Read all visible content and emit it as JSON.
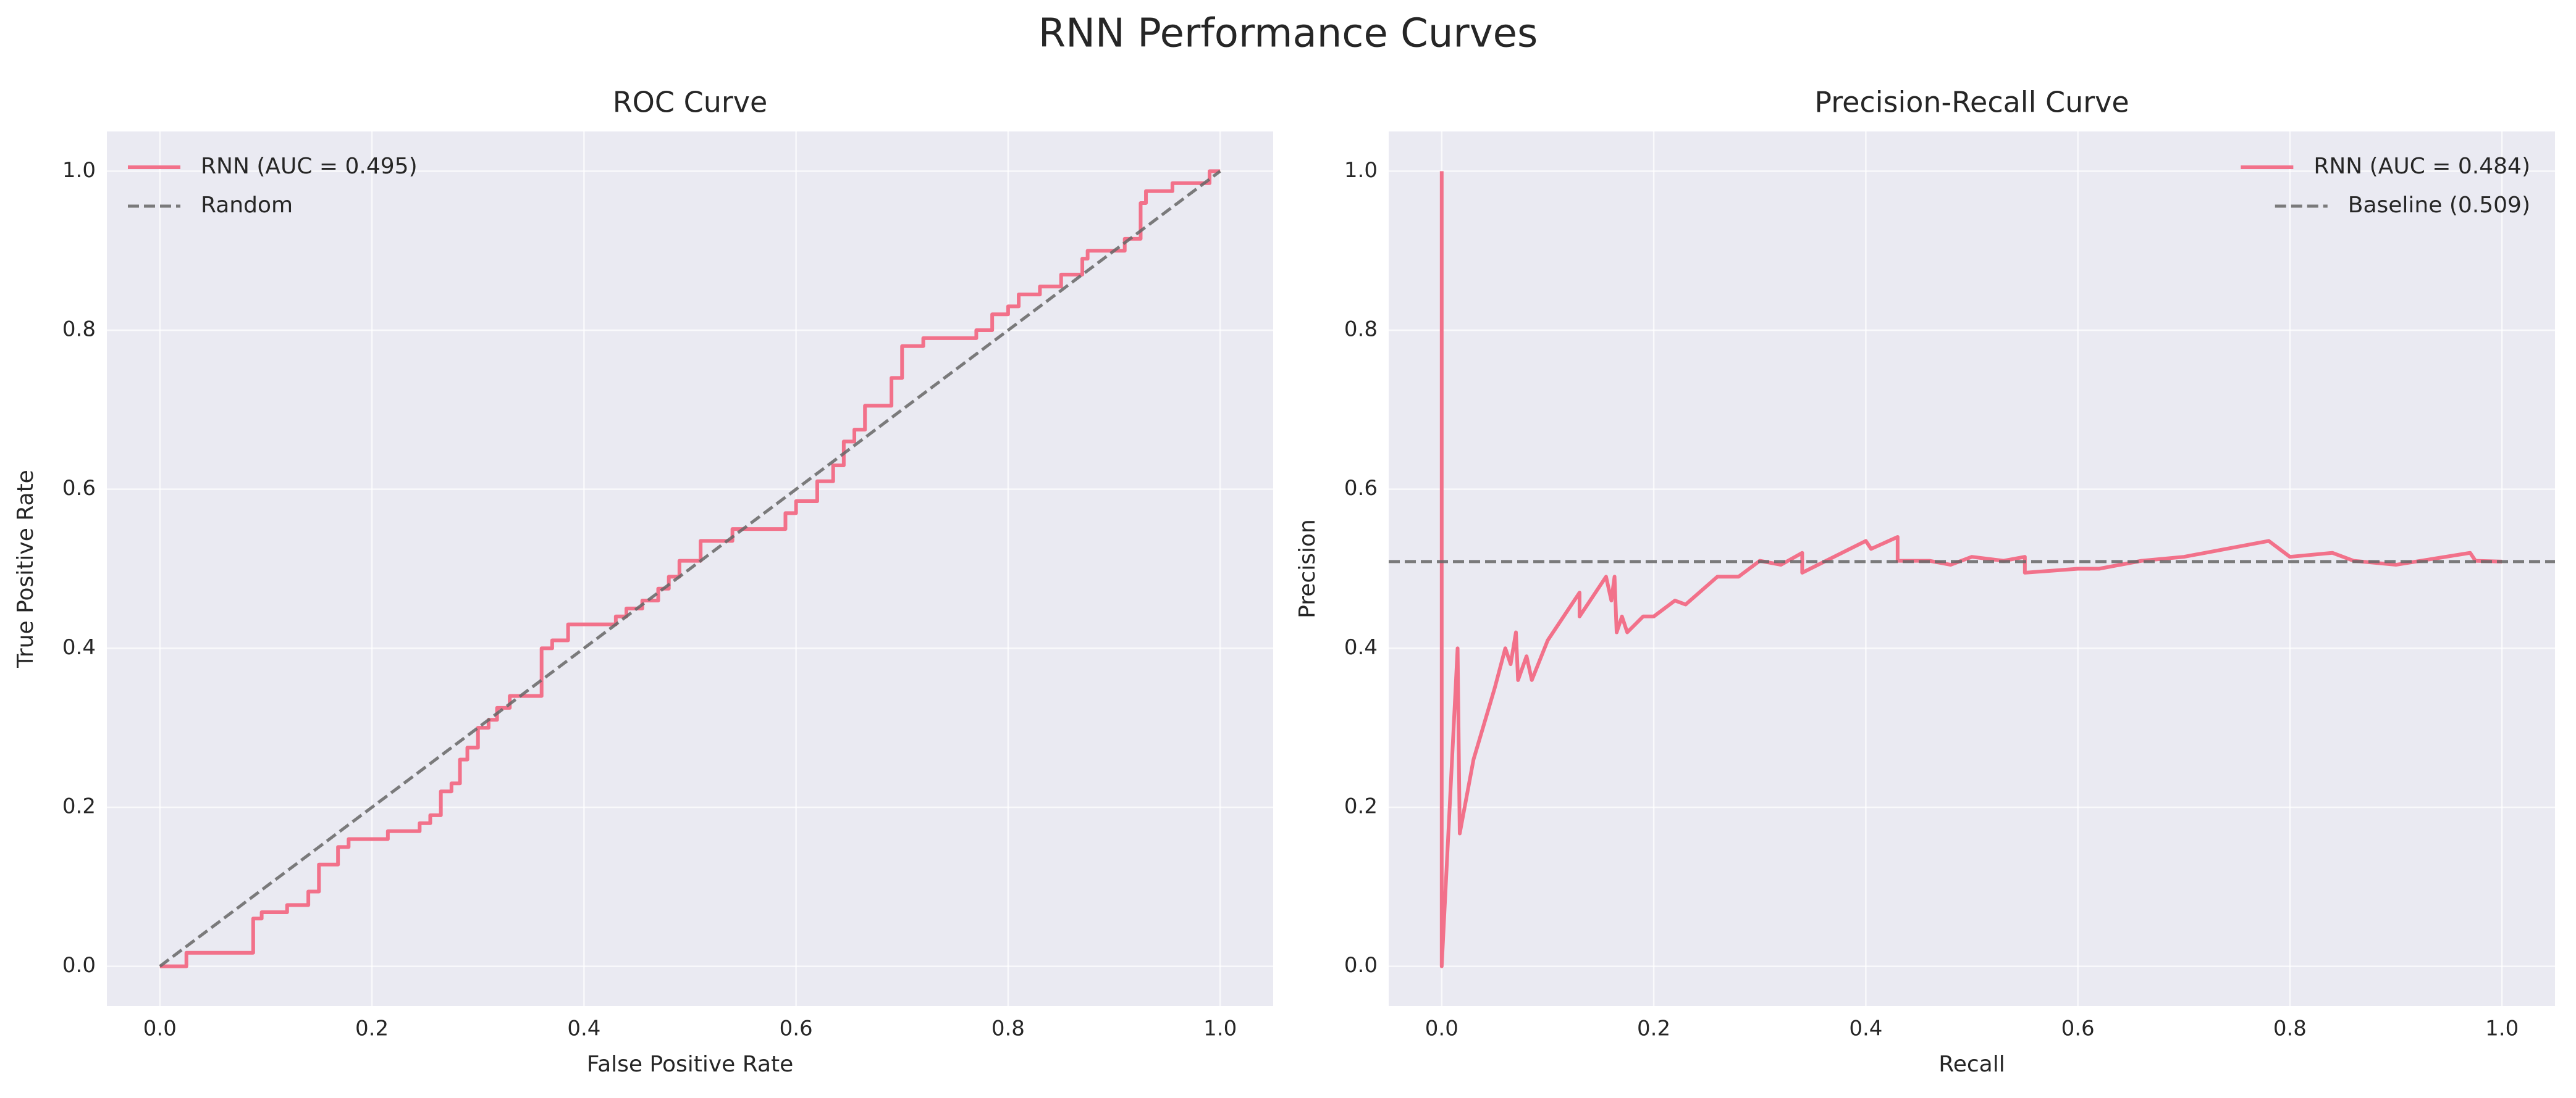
{
  "title": "RNN Performance Curves",
  "chart_data": [
    {
      "type": "line",
      "title": "ROC Curve",
      "xlabel": "False Positive Rate",
      "ylabel": "True Positive Rate",
      "xlim": [
        -0.05,
        1.05
      ],
      "ylim": [
        -0.05,
        1.05
      ],
      "xticks": [
        {
          "value": 0,
          "label": "0.0"
        },
        0.2,
        0.4,
        0.6,
        0.8,
        {
          "value": 1,
          "label": "1.0"
        }
      ],
      "yticks": [
        {
          "value": 0,
          "label": "0.0"
        },
        0.2,
        0.4,
        0.6,
        0.8,
        {
          "value": 1,
          "label": "1.0"
        }
      ],
      "grid": true,
      "legend": "upper left",
      "series": [
        {
          "name": "RNN (AUC = 0.495)",
          "color": "#f2718a",
          "linestyle": "-",
          "x": [
            0,
            0.025,
            0.025,
            0.088,
            0.088,
            0.096,
            0.096,
            0.12,
            0.12,
            0.14,
            0.14,
            0.15,
            0.15,
            0.168,
            0.168,
            0.178,
            0.178,
            0.215,
            0.215,
            0.245,
            0.245,
            0.255,
            0.255,
            0.265,
            0.265,
            0.275,
            0.275,
            0.283,
            0.283,
            0.29,
            0.29,
            0.3,
            0.3,
            0.31,
            0.31,
            0.318,
            0.318,
            0.33,
            0.33,
            0.36,
            0.36,
            0.37,
            0.37,
            0.385,
            0.385,
            0.43,
            0.43,
            0.44,
            0.44,
            0.455,
            0.455,
            0.47,
            0.47,
            0.48,
            0.48,
            0.49,
            0.49,
            0.51,
            0.51,
            0.54,
            0.54,
            0.59,
            0.59,
            0.6,
            0.6,
            0.62,
            0.62,
            0.635,
            0.635,
            0.645,
            0.645,
            0.655,
            0.655,
            0.665,
            0.665,
            0.69,
            0.69,
            0.7,
            0.7,
            0.72,
            0.72,
            0.77,
            0.77,
            0.785,
            0.785,
            0.8,
            0.8,
            0.81,
            0.81,
            0.83,
            0.83,
            0.85,
            0.85,
            0.87,
            0.87,
            0.875,
            0.875,
            0.91,
            0.91,
            0.925,
            0.925,
            0.93,
            0.93,
            0.955,
            0.955,
            0.99,
            0.99,
            1.0
          ],
          "values": [
            0,
            0,
            0.017,
            0.017,
            0.06,
            0.06,
            0.068,
            0.068,
            0.077,
            0.077,
            0.094,
            0.094,
            0.128,
            0.128,
            0.15,
            0.15,
            0.16,
            0.16,
            0.17,
            0.17,
            0.18,
            0.18,
            0.19,
            0.19,
            0.22,
            0.22,
            0.23,
            0.23,
            0.26,
            0.26,
            0.275,
            0.275,
            0.3,
            0.3,
            0.31,
            0.31,
            0.325,
            0.325,
            0.34,
            0.34,
            0.4,
            0.4,
            0.41,
            0.41,
            0.43,
            0.43,
            0.44,
            0.44,
            0.45,
            0.45,
            0.46,
            0.46,
            0.475,
            0.475,
            0.49,
            0.49,
            0.51,
            0.51,
            0.535,
            0.535,
            0.55,
            0.55,
            0.57,
            0.57,
            0.585,
            0.585,
            0.61,
            0.61,
            0.63,
            0.63,
            0.66,
            0.66,
            0.675,
            0.675,
            0.705,
            0.705,
            0.74,
            0.74,
            0.78,
            0.78,
            0.79,
            0.79,
            0.8,
            0.8,
            0.82,
            0.82,
            0.83,
            0.83,
            0.845,
            0.845,
            0.855,
            0.855,
            0.87,
            0.87,
            0.89,
            0.89,
            0.9,
            0.9,
            0.915,
            0.915,
            0.96,
            0.96,
            0.975,
            0.975,
            0.985,
            0.985,
            1.0,
            1.0
          ]
        },
        {
          "name": "Random",
          "color": "#666666",
          "linestyle": "--",
          "x": [
            0,
            1
          ],
          "values": [
            0,
            1
          ]
        }
      ]
    },
    {
      "type": "line",
      "title": "Precision-Recall Curve",
      "xlabel": "Recall",
      "ylabel": "Precision",
      "xlim": [
        -0.05,
        1.05
      ],
      "ylim": [
        -0.05,
        1.05
      ],
      "xticks": [
        {
          "value": 0,
          "label": "0.0"
        },
        0.2,
        0.4,
        0.6,
        0.8,
        {
          "value": 1,
          "label": "1.0"
        }
      ],
      "yticks": [
        {
          "value": 0,
          "label": "0.0"
        },
        0.2,
        0.4,
        0.6,
        0.8,
        {
          "value": 1,
          "label": "1.0"
        }
      ],
      "grid": true,
      "legend": "upper right",
      "series": [
        {
          "name": "RNN (AUC = 0.484)",
          "color": "#f2718a",
          "linestyle": "-",
          "x": [
            0,
            0,
            0.015,
            0.017,
            0.03,
            0.05,
            0.06,
            0.065,
            0.07,
            0.072,
            0.08,
            0.085,
            0.1,
            0.13,
            0.13,
            0.155,
            0.16,
            0.163,
            0.165,
            0.17,
            0.175,
            0.19,
            0.2,
            0.22,
            0.23,
            0.26,
            0.28,
            0.3,
            0.32,
            0.34,
            0.34,
            0.4,
            0.405,
            0.43,
            0.43,
            0.46,
            0.48,
            0.5,
            0.53,
            0.55,
            0.55,
            0.6,
            0.62,
            0.66,
            0.7,
            0.78,
            0.79,
            0.8,
            0.84,
            0.86,
            0.9,
            0.97,
            0.975,
            1.0
          ],
          "values": [
            1.0,
            0,
            0.4,
            0.167,
            0.26,
            0.35,
            0.4,
            0.38,
            0.42,
            0.36,
            0.39,
            0.36,
            0.41,
            0.47,
            0.44,
            0.49,
            0.46,
            0.49,
            0.42,
            0.44,
            0.42,
            0.44,
            0.44,
            0.46,
            0.455,
            0.49,
            0.49,
            0.51,
            0.505,
            0.52,
            0.495,
            0.535,
            0.525,
            0.54,
            0.51,
            0.51,
            0.505,
            0.515,
            0.51,
            0.515,
            0.495,
            0.5,
            0.5,
            0.51,
            0.515,
            0.535,
            0.525,
            0.515,
            0.52,
            0.51,
            0.505,
            0.52,
            0.51,
            0.509
          ]
        },
        {
          "name": "Baseline (0.509)",
          "color": "#666666",
          "linestyle": "--",
          "hline": 0.509
        }
      ]
    }
  ]
}
